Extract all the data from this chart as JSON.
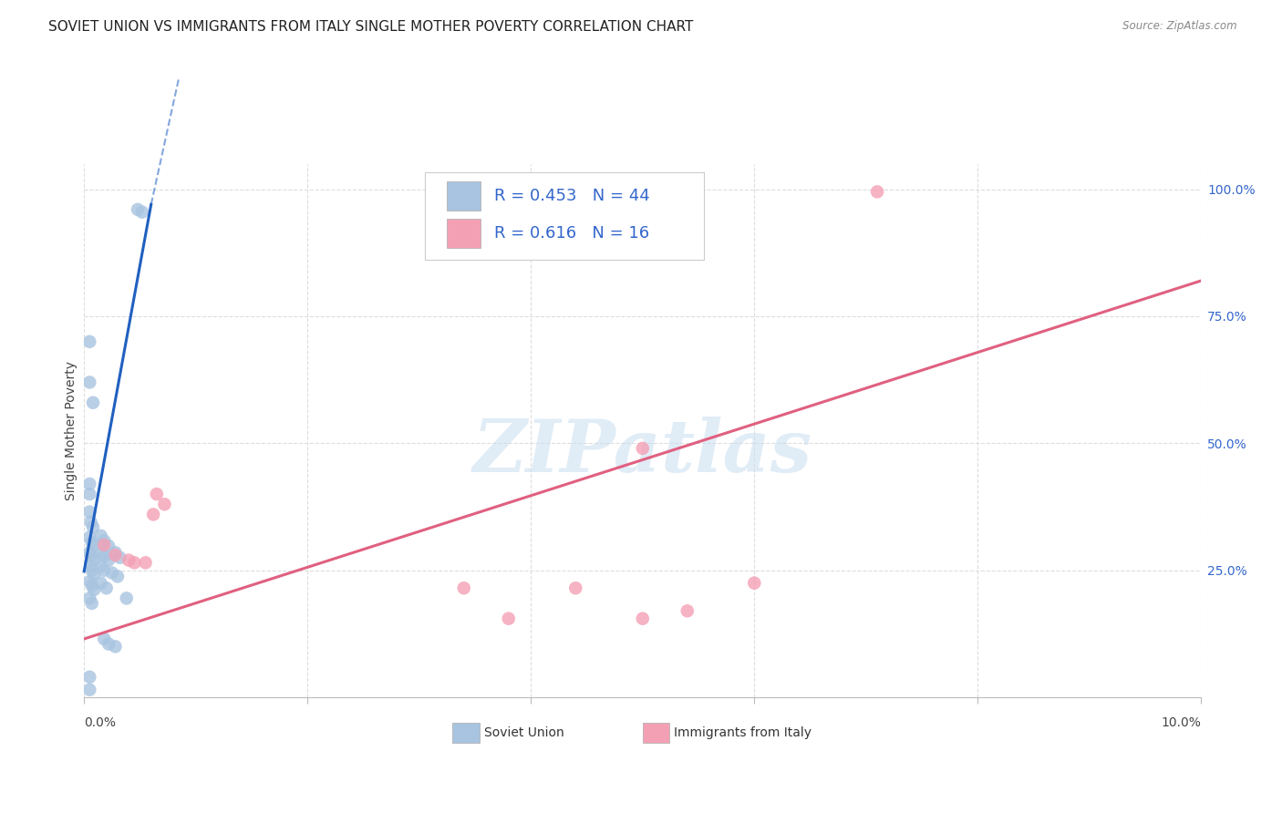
{
  "title": "SOVIET UNION VS IMMIGRANTS FROM ITALY SINGLE MOTHER POVERTY CORRELATION CHART",
  "source": "Source: ZipAtlas.com",
  "ylabel": "Single Mother Poverty",
  "ytick_positions": [
    0.0,
    0.25,
    0.5,
    0.75,
    1.0
  ],
  "xlim": [
    0.0,
    0.1
  ],
  "ylim": [
    0.0,
    1.05
  ],
  "watermark": "ZIPatlas",
  "legend_r1": "R = 0.453",
  "legend_n1": "N = 44",
  "legend_r2": "R = 0.616",
  "legend_n2": "N = 16",
  "legend_label1": "Soviet Union",
  "legend_label2": "Immigrants from Italy",
  "soviet_color": "#a8c4e0",
  "italy_color": "#f4a0b4",
  "soviet_line_color": "#2060c0",
  "italy_line_color": "#e06080",
  "soviet_scatter": [
    [
      0.0005,
      0.7
    ],
    [
      0.0005,
      0.62
    ],
    [
      0.0008,
      0.58
    ],
    [
      0.0048,
      0.96
    ],
    [
      0.0052,
      0.955
    ],
    [
      0.0005,
      0.42
    ],
    [
      0.0005,
      0.4
    ],
    [
      0.0005,
      0.365
    ],
    [
      0.0006,
      0.345
    ],
    [
      0.0008,
      0.335
    ],
    [
      0.0005,
      0.315
    ],
    [
      0.0007,
      0.305
    ],
    [
      0.0009,
      0.298
    ],
    [
      0.0015,
      0.318
    ],
    [
      0.0018,
      0.308
    ],
    [
      0.0022,
      0.298
    ],
    [
      0.0005,
      0.285
    ],
    [
      0.0007,
      0.278
    ],
    [
      0.0009,
      0.27
    ],
    [
      0.0015,
      0.285
    ],
    [
      0.0018,
      0.278
    ],
    [
      0.0022,
      0.27
    ],
    [
      0.0028,
      0.285
    ],
    [
      0.0032,
      0.275
    ],
    [
      0.0005,
      0.258
    ],
    [
      0.0007,
      0.25
    ],
    [
      0.0009,
      0.242
    ],
    [
      0.0015,
      0.258
    ],
    [
      0.0018,
      0.25
    ],
    [
      0.0025,
      0.245
    ],
    [
      0.003,
      0.238
    ],
    [
      0.0005,
      0.228
    ],
    [
      0.0007,
      0.22
    ],
    [
      0.0009,
      0.212
    ],
    [
      0.0015,
      0.225
    ],
    [
      0.002,
      0.215
    ],
    [
      0.0005,
      0.195
    ],
    [
      0.0007,
      0.185
    ],
    [
      0.0038,
      0.195
    ],
    [
      0.0018,
      0.115
    ],
    [
      0.0022,
      0.105
    ],
    [
      0.0028,
      0.1
    ],
    [
      0.0005,
      0.04
    ],
    [
      0.0005,
      0.015
    ]
  ],
  "italy_scatter": [
    [
      0.071,
      0.995
    ],
    [
      0.0018,
      0.3
    ],
    [
      0.0028,
      0.28
    ],
    [
      0.004,
      0.27
    ],
    [
      0.0045,
      0.265
    ],
    [
      0.0065,
      0.4
    ],
    [
      0.0072,
      0.38
    ],
    [
      0.0055,
      0.265
    ],
    [
      0.0062,
      0.36
    ],
    [
      0.05,
      0.49
    ],
    [
      0.034,
      0.215
    ],
    [
      0.044,
      0.215
    ],
    [
      0.06,
      0.225
    ],
    [
      0.05,
      0.155
    ],
    [
      0.054,
      0.17
    ],
    [
      0.038,
      0.155
    ]
  ],
  "soviet_trendline_solid": [
    [
      0.0,
      0.248
    ],
    [
      0.006,
      0.97
    ]
  ],
  "soviet_trendline_dashed": [
    [
      0.006,
      0.97
    ],
    [
      0.0085,
      1.22
    ]
  ],
  "italy_trendline": [
    [
      0.0,
      0.115
    ],
    [
      0.1,
      0.82
    ]
  ],
  "background_color": "#ffffff",
  "grid_color": "#dddddd",
  "title_fontsize": 11,
  "axis_label_fontsize": 10,
  "tick_fontsize": 10,
  "legend_fontsize": 13
}
